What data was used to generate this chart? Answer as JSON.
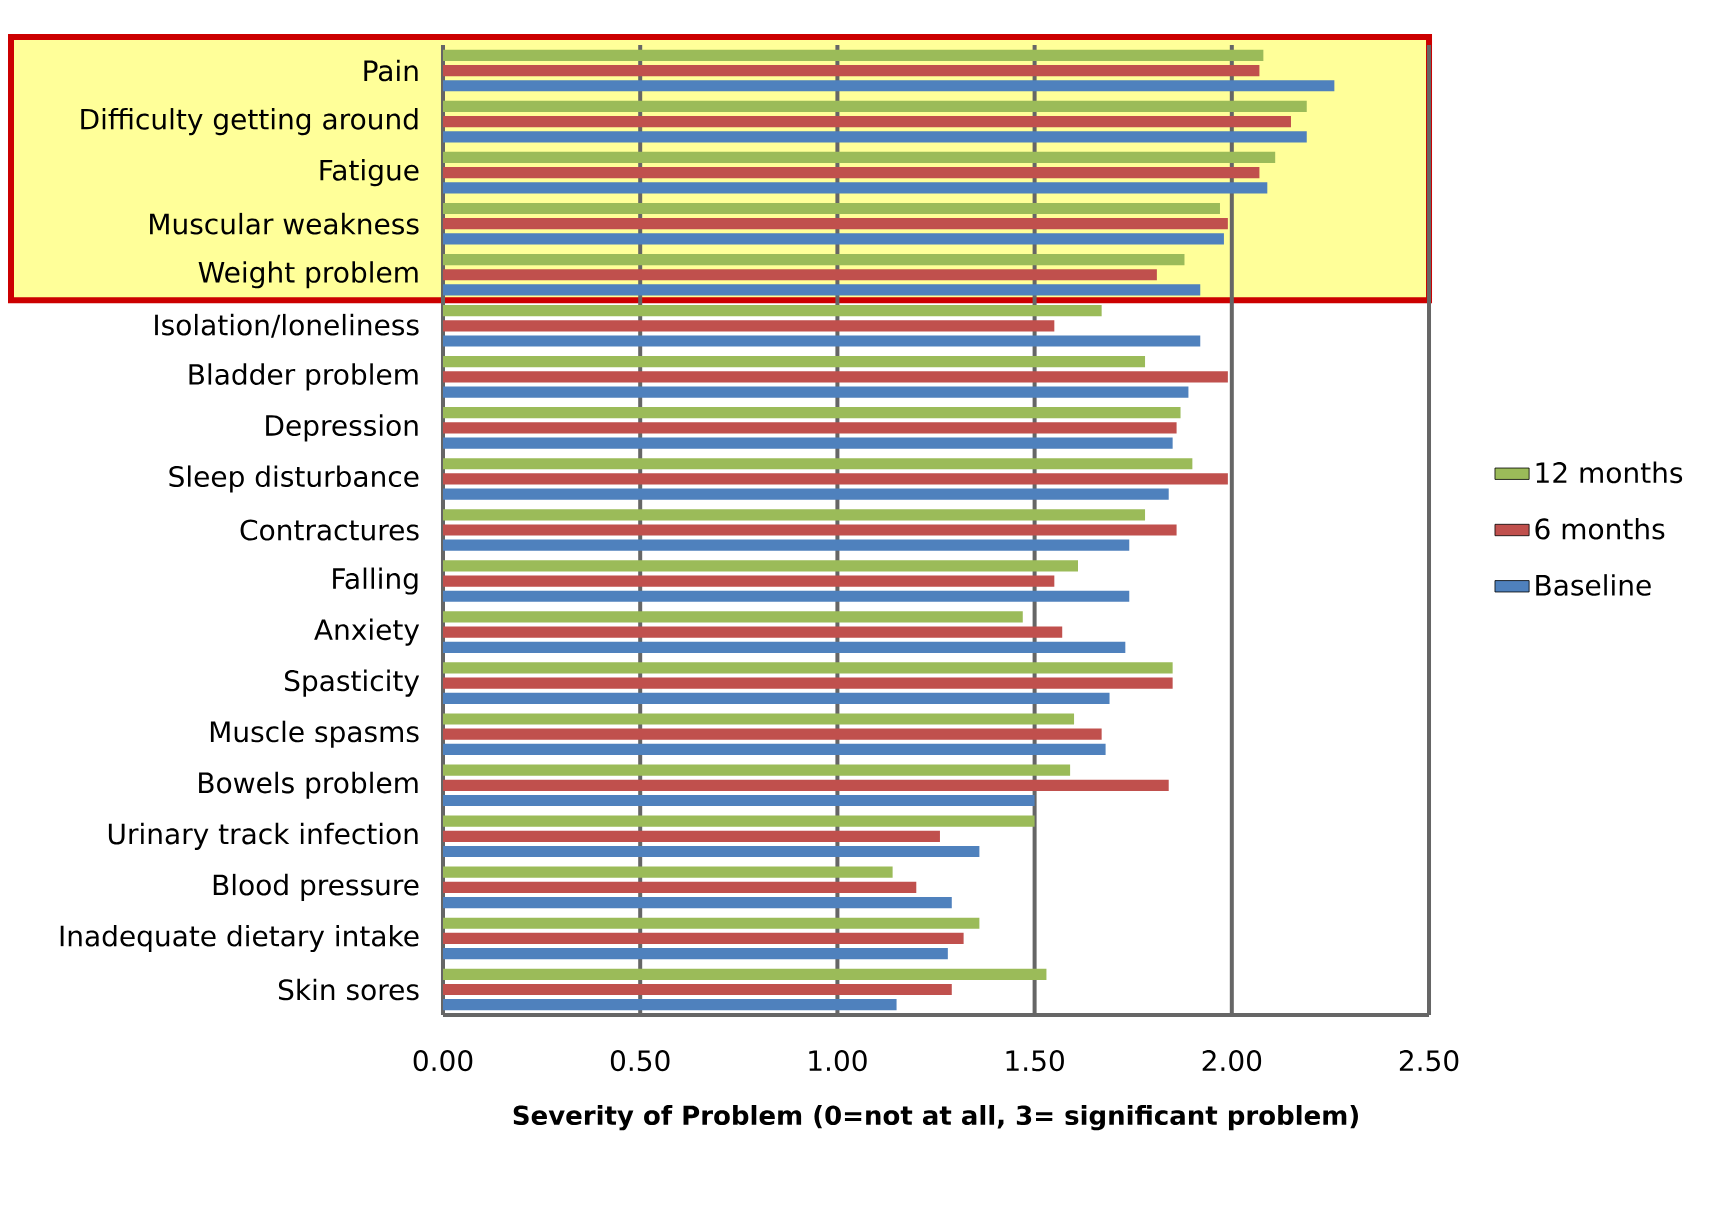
{
  "chart_data": {
    "type": "bar",
    "orientation": "horizontal",
    "xlabel": "Severity of Problem (0=not at all,  3= significant problem)",
    "categories": [
      "Pain",
      "Difficulty getting around",
      "Fatigue",
      "Muscular weakness",
      "Weight problem",
      "Isolation/loneliness",
      "Bladder problem",
      "Depression",
      "Sleep disturbance",
      "Contractures",
      "Falling",
      "Anxiety",
      "Spasticity",
      "Muscle spasms",
      "Bowels problem",
      "Urinary track infection",
      "Blood pressure",
      "Inadequate dietary intake",
      "Skin sores"
    ],
    "series": [
      {
        "name": "12 months",
        "color": "#9bbb59",
        "values": [
          2.08,
          2.19,
          2.11,
          1.97,
          1.88,
          1.67,
          1.78,
          1.87,
          1.9,
          1.78,
          1.61,
          1.47,
          1.85,
          1.6,
          1.59,
          1.5,
          1.14,
          1.36,
          1.53
        ]
      },
      {
        "name": "6 months",
        "color": "#c0504d",
        "values": [
          2.07,
          2.15,
          2.07,
          1.99,
          1.81,
          1.55,
          1.99,
          1.86,
          1.99,
          1.86,
          1.55,
          1.57,
          1.85,
          1.67,
          1.84,
          1.26,
          1.2,
          1.32,
          1.29
        ]
      },
      {
        "name": "Baseline",
        "color": "#4f81bd",
        "values": [
          2.26,
          2.19,
          2.09,
          1.98,
          1.92,
          1.92,
          1.89,
          1.85,
          1.84,
          1.74,
          1.74,
          1.73,
          1.69,
          1.68,
          1.5,
          1.36,
          1.29,
          1.28,
          1.15
        ]
      }
    ],
    "xlim": [
      0,
      2.5
    ],
    "xticks": [
      {
        "value": 0,
        "label": "0.00"
      },
      {
        "value": 0.5,
        "label": "0.50"
      },
      {
        "value": 1,
        "label": "1.00"
      },
      {
        "value": 1.5,
        "label": "1.50"
      },
      {
        "value": 2,
        "label": "2.00"
      },
      {
        "value": 2.5,
        "label": "2.50"
      }
    ],
    "bands": [
      {
        "axis": "y",
        "from": "Pain",
        "to": "Weight problem",
        "color": "#ffff99"
      }
    ],
    "grid": "x",
    "legend": "right"
  }
}
